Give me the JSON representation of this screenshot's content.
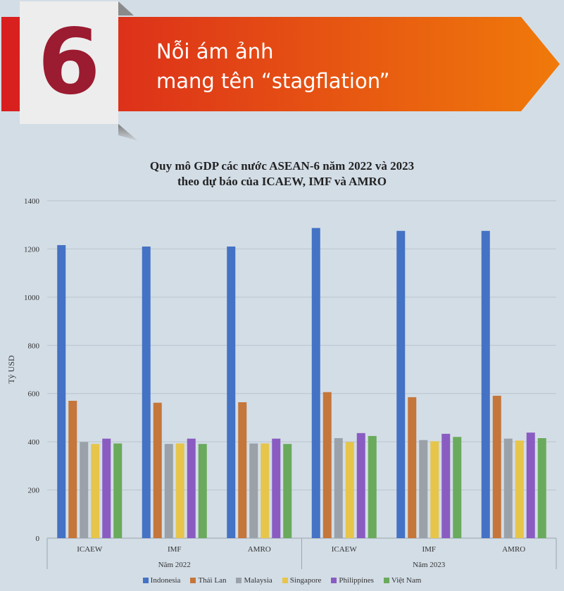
{
  "header": {
    "number": "6",
    "title_line1": "Nỗi ám ảnh",
    "title_line2": "mang tên “stagflation”"
  },
  "colors": {
    "banner_start": "#d81e1e",
    "banner_end": "#f07a0a",
    "number": "#9b1b30",
    "background": "#d3dde6"
  },
  "chart_data": {
    "type": "bar",
    "title_line1": "Quy mô GDP các nước ASEAN-6 năm 2022 và 2023",
    "title_line2": "theo dự báo của ICAEW, IMF và AMRO",
    "ylabel": "Tỷ USD",
    "ylim": [
      0,
      1400
    ],
    "yticks": [
      0,
      200,
      400,
      600,
      800,
      1000,
      1200,
      1400
    ],
    "grid": true,
    "legend_position": "bottom",
    "categories": [
      "ICAEW",
      "IMF",
      "AMRO",
      "ICAEW",
      "IMF",
      "AMRO"
    ],
    "groups": [
      {
        "label": "Năm 2022",
        "categories": 3
      },
      {
        "label": "Năm 2023",
        "categories": 3
      }
    ],
    "series": [
      {
        "name": "Indonesia",
        "color": "#4472c4",
        "values": [
          1216,
          1210,
          1210,
          1287,
          1275,
          1275
        ]
      },
      {
        "name": "Thái Lan",
        "color": "#c5763a",
        "values": [
          570,
          562,
          564,
          606,
          585,
          591
        ]
      },
      {
        "name": "Malaysia",
        "color": "#9aa1a8",
        "values": [
          399,
          391,
          393,
          415,
          407,
          413
        ]
      },
      {
        "name": "Singapore",
        "color": "#e6c54a",
        "values": [
          391,
          393,
          393,
          399,
          402,
          405
        ]
      },
      {
        "name": "Philippines",
        "color": "#8a5cc2",
        "values": [
          413,
          413,
          413,
          436,
          433,
          438
        ]
      },
      {
        "name": "Việt Nam",
        "color": "#6aaa5c",
        "values": [
          393,
          391,
          391,
          424,
          420,
          415
        ]
      }
    ]
  }
}
